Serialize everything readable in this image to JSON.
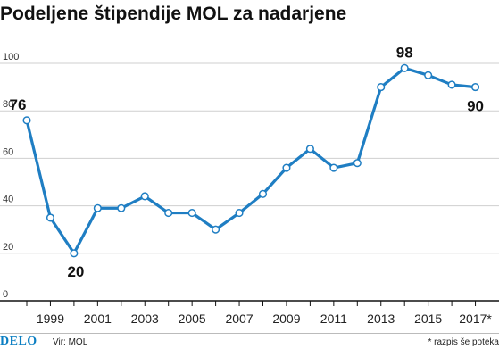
{
  "title": "Podeljene štipendije MOL za nadarjene",
  "footer": {
    "brand": "DELO",
    "source": "Vir: MOL",
    "note": "* razpis še poteka"
  },
  "colors": {
    "line": "#1f7ec3",
    "grid": "#cfcfcf",
    "axis": "#111111"
  },
  "chart_data": {
    "type": "line",
    "title": "Podeljene štipendije MOL za nadarjene",
    "xlabel": "",
    "ylabel": "",
    "x": [
      1998,
      1999,
      2000,
      2001,
      2002,
      2003,
      2004,
      2005,
      2006,
      2007,
      2008,
      2009,
      2010,
      2011,
      2012,
      2013,
      2014,
      2015,
      2016,
      2017
    ],
    "values": [
      76,
      35,
      20,
      39,
      39,
      44,
      37,
      37,
      30,
      37,
      45,
      56,
      64,
      56,
      58,
      90,
      98,
      95,
      91,
      90
    ],
    "ylim": [
      0,
      100
    ],
    "yticks": [
      0,
      20,
      40,
      60,
      80,
      100
    ],
    "xtick_labels": [
      {
        "x": 1999,
        "label": "1999"
      },
      {
        "x": 2001,
        "label": "2001"
      },
      {
        "x": 2003,
        "label": "2003"
      },
      {
        "x": 2005,
        "label": "2005"
      },
      {
        "x": 2007,
        "label": "2007"
      },
      {
        "x": 2009,
        "label": "2009"
      },
      {
        "x": 2011,
        "label": "2011"
      },
      {
        "x": 2013,
        "label": "2013"
      },
      {
        "x": 2015,
        "label": "2015"
      },
      {
        "x": 2017,
        "label": "2017*"
      }
    ],
    "data_labels": [
      {
        "x": 1998,
        "text": "76"
      },
      {
        "x": 2000,
        "text": "20"
      },
      {
        "x": 2014,
        "text": "98"
      },
      {
        "x": 2017,
        "text": "90"
      }
    ],
    "grid": true,
    "markers": "hollow-circle"
  }
}
